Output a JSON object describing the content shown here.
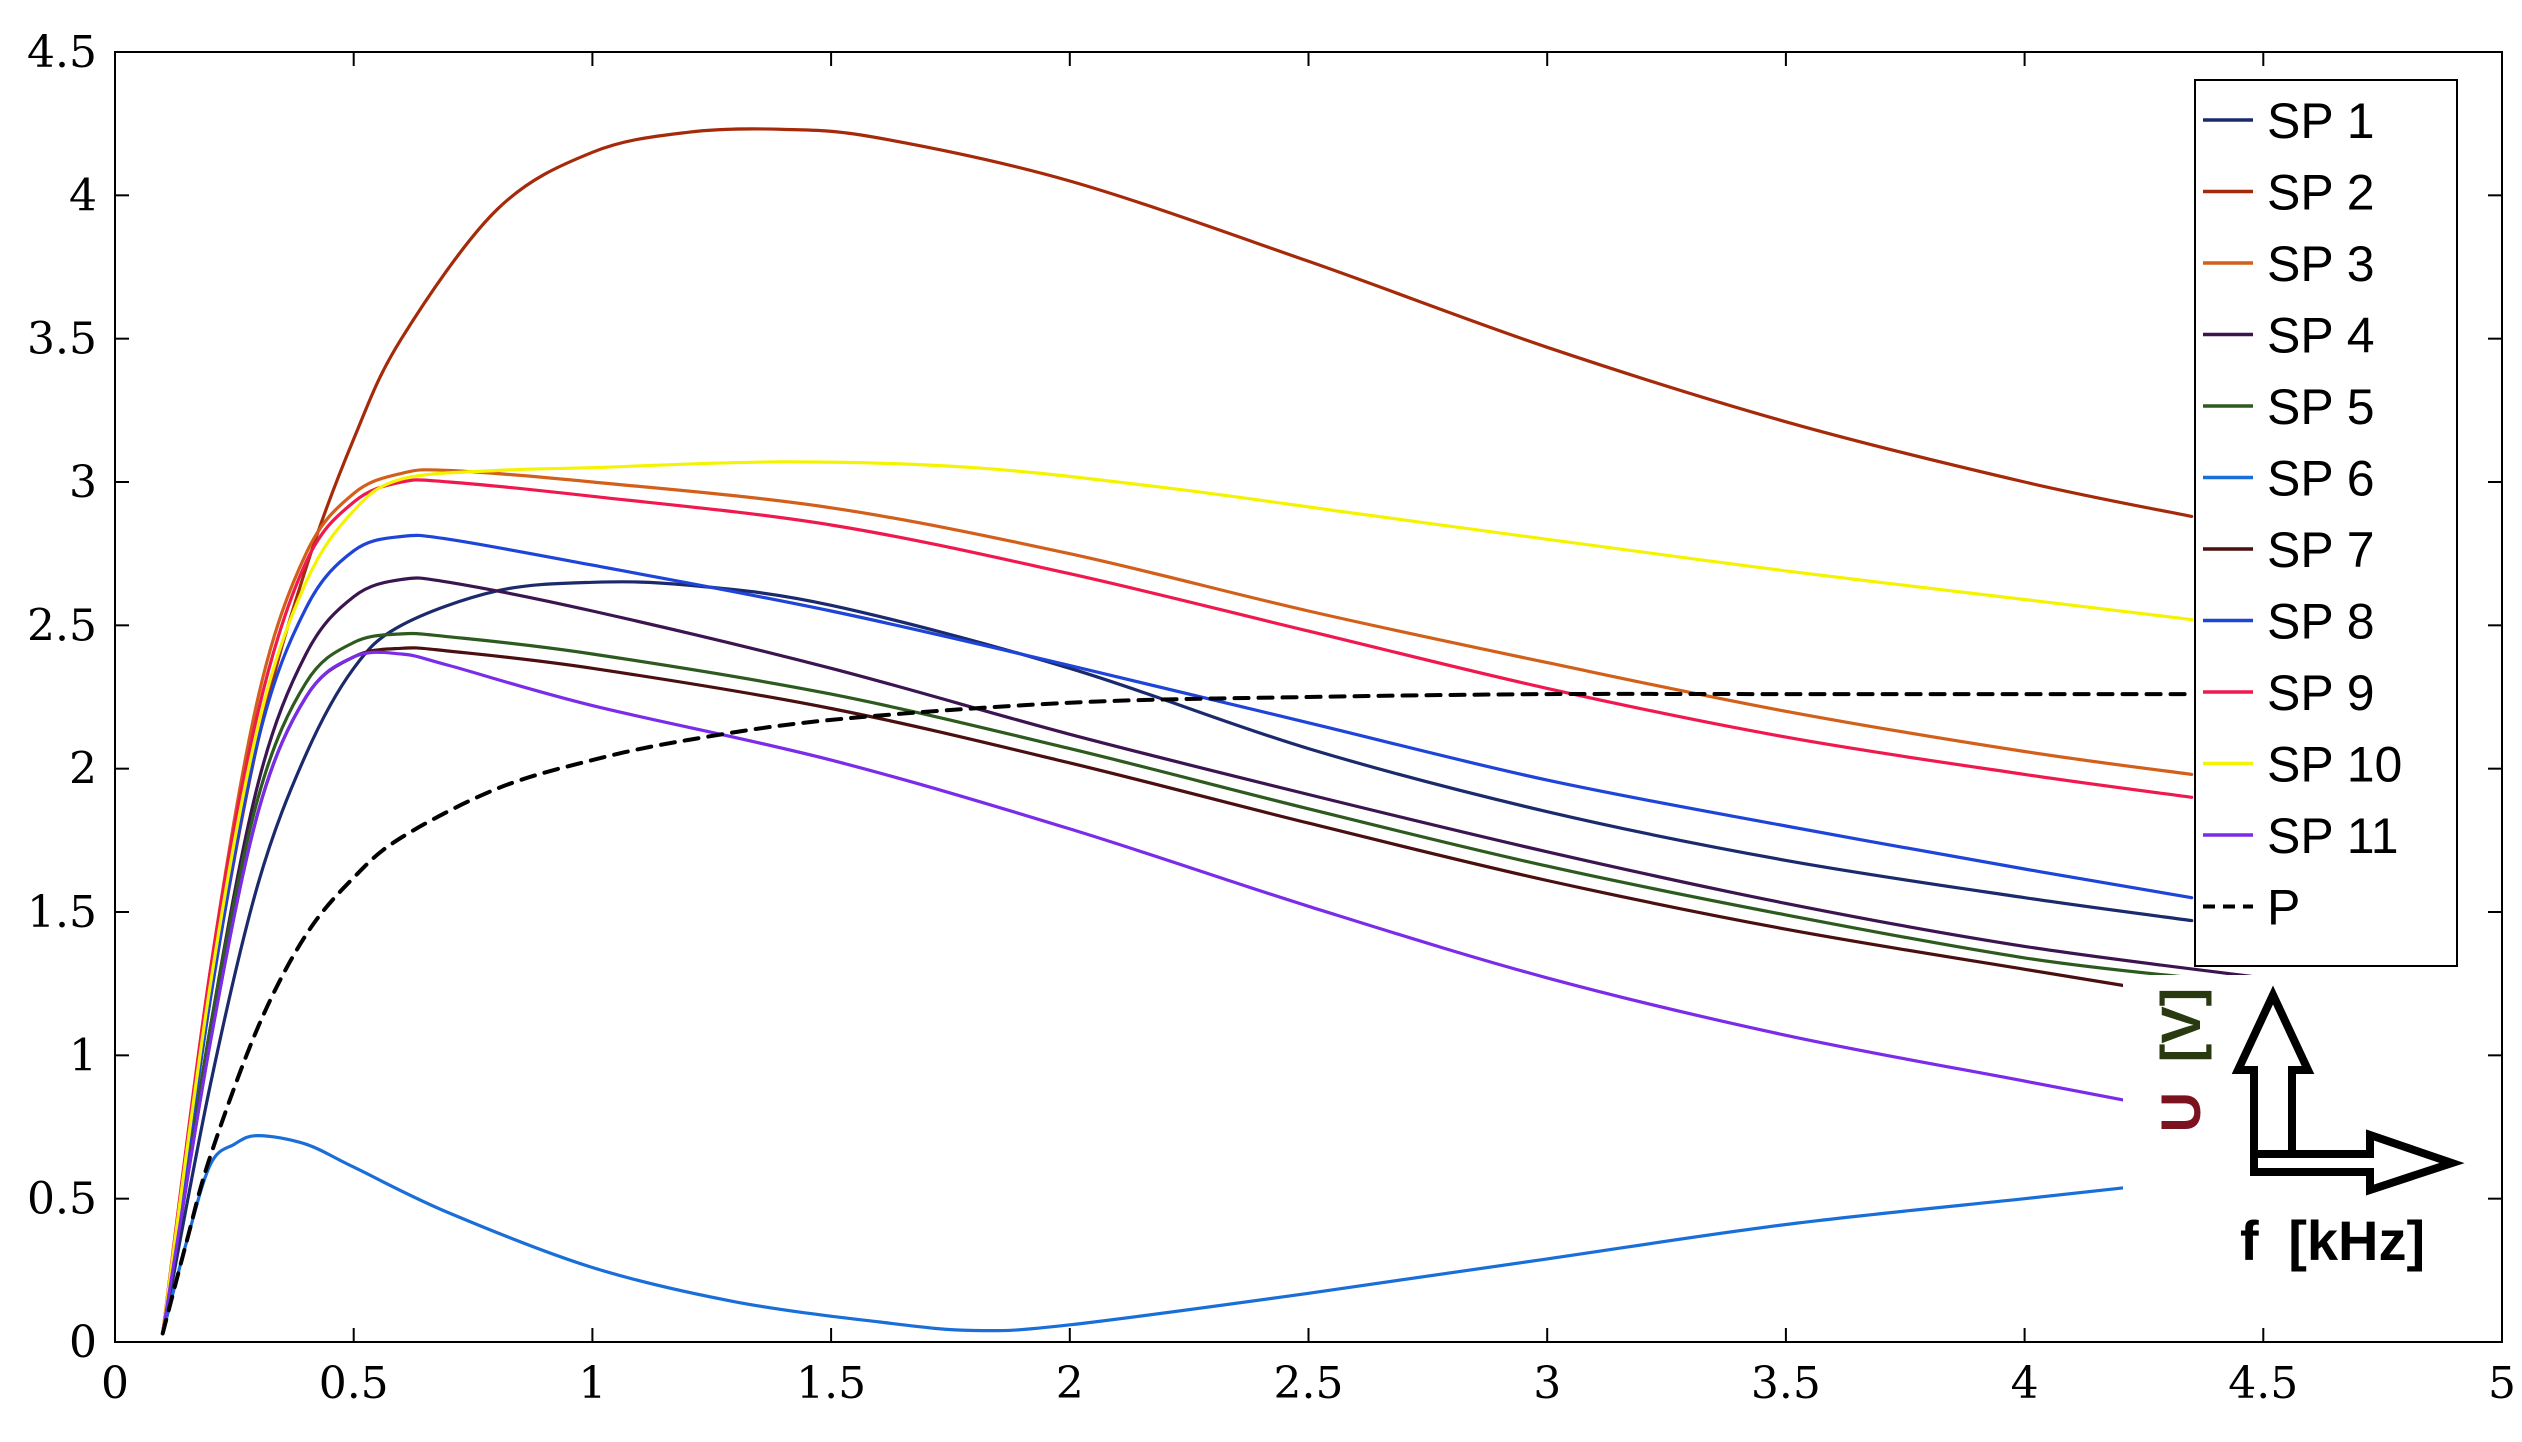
{
  "chart_data": {
    "type": "line",
    "title": "",
    "xlabel": "",
    "ylabel": "",
    "xlim": [
      0,
      5
    ],
    "ylim": [
      0,
      4.5
    ],
    "xticks": [
      "0",
      "0.5",
      "1",
      "1.5",
      "2",
      "2.5",
      "3",
      "3.5",
      "4",
      "4.5",
      "5"
    ],
    "yticks": [
      "0",
      "0.5",
      "1",
      "1.5",
      "2",
      "2.5",
      "3",
      "3.5",
      "4",
      "4.5"
    ],
    "grid": false,
    "legend_position": "top-right",
    "axis_hint": {
      "y_label_U": "U",
      "y_label_unit": "[V]",
      "x_label_f": "f",
      "x_label_unit": "[kHz]"
    },
    "series": [
      {
        "name": "SP 1",
        "color": "#1a2a6c",
        "dash": "solid",
        "x": [
          0.1,
          0.2,
          0.3,
          0.4,
          0.5,
          0.6,
          0.8,
          1.0,
          1.2,
          1.5,
          2.0,
          2.5,
          3.0,
          3.5,
          4.0,
          4.35
        ],
        "y": [
          0.03,
          0.9,
          1.6,
          2.05,
          2.35,
          2.5,
          2.62,
          2.65,
          2.64,
          2.57,
          2.35,
          2.07,
          1.85,
          1.68,
          1.55,
          1.47
        ]
      },
      {
        "name": "SP 2",
        "color": "#a52a0a",
        "dash": "solid",
        "x": [
          0.1,
          0.2,
          0.3,
          0.4,
          0.5,
          0.6,
          0.8,
          1.0,
          1.2,
          1.4,
          1.6,
          2.0,
          2.5,
          3.0,
          3.5,
          4.0,
          4.35
        ],
        "y": [
          0.03,
          1.2,
          2.1,
          2.7,
          3.15,
          3.5,
          3.95,
          4.15,
          4.22,
          4.23,
          4.2,
          4.05,
          3.77,
          3.47,
          3.21,
          3.0,
          2.88
        ]
      },
      {
        "name": "SP 3",
        "color": "#d2601a",
        "dash": "solid",
        "x": [
          0.1,
          0.2,
          0.3,
          0.4,
          0.5,
          0.6,
          0.7,
          1.0,
          1.5,
          2.0,
          2.5,
          3.0,
          3.5,
          4.0,
          4.35
        ],
        "y": [
          0.03,
          1.3,
          2.25,
          2.75,
          2.96,
          3.03,
          3.04,
          3.0,
          2.91,
          2.75,
          2.55,
          2.37,
          2.2,
          2.06,
          1.98
        ]
      },
      {
        "name": "SP 4",
        "color": "#3c1450",
        "dash": "solid",
        "x": [
          0.1,
          0.2,
          0.3,
          0.4,
          0.5,
          0.6,
          0.7,
          1.0,
          1.5,
          2.0,
          2.5,
          3.0,
          3.5,
          4.0,
          4.5
        ],
        "y": [
          0.03,
          1.1,
          1.95,
          2.4,
          2.6,
          2.66,
          2.65,
          2.55,
          2.35,
          2.12,
          1.91,
          1.71,
          1.53,
          1.38,
          1.27
        ]
      },
      {
        "name": "SP 5",
        "color": "#2d5a1e",
        "dash": "solid",
        "x": [
          0.1,
          0.2,
          0.3,
          0.4,
          0.5,
          0.6,
          0.7,
          1.0,
          1.5,
          2.0,
          2.5,
          3.0,
          3.5,
          4.0,
          4.35
        ],
        "y": [
          0.03,
          1.1,
          1.9,
          2.3,
          2.44,
          2.47,
          2.46,
          2.4,
          2.26,
          2.07,
          1.86,
          1.66,
          1.49,
          1.34,
          1.27
        ]
      },
      {
        "name": "SP 6",
        "color": "#1a6ed8",
        "dash": "solid",
        "x": [
          0.1,
          0.15,
          0.2,
          0.25,
          0.3,
          0.4,
          0.5,
          0.7,
          1.0,
          1.3,
          1.6,
          1.8,
          2.0,
          2.5,
          3.0,
          3.5,
          4.0,
          4.22
        ],
        "y": [
          0.03,
          0.35,
          0.62,
          0.69,
          0.72,
          0.69,
          0.61,
          0.45,
          0.26,
          0.14,
          0.07,
          0.04,
          0.06,
          0.17,
          0.29,
          0.41,
          0.5,
          0.54
        ]
      },
      {
        "name": "SP 7",
        "color": "#4a0f0f",
        "dash": "solid",
        "x": [
          0.1,
          0.2,
          0.3,
          0.4,
          0.5,
          0.6,
          0.7,
          1.0,
          1.5,
          2.0,
          2.5,
          3.0,
          3.5,
          4.0,
          4.22
        ],
        "y": [
          0.03,
          1.05,
          1.85,
          2.25,
          2.39,
          2.42,
          2.41,
          2.35,
          2.21,
          2.02,
          1.81,
          1.61,
          1.44,
          1.3,
          1.24
        ]
      },
      {
        "name": "SP 8",
        "color": "#1e44d8",
        "dash": "solid",
        "x": [
          0.1,
          0.2,
          0.3,
          0.4,
          0.5,
          0.6,
          0.7,
          1.0,
          1.5,
          2.0,
          2.5,
          3.0,
          3.5,
          4.0,
          4.35
        ],
        "y": [
          0.03,
          1.2,
          2.1,
          2.56,
          2.76,
          2.81,
          2.8,
          2.71,
          2.55,
          2.36,
          2.16,
          1.96,
          1.8,
          1.65,
          1.55
        ]
      },
      {
        "name": "SP 9",
        "color": "#f0194e",
        "dash": "solid",
        "x": [
          0.1,
          0.2,
          0.3,
          0.4,
          0.5,
          0.6,
          0.7,
          1.0,
          1.5,
          2.0,
          2.5,
          3.0,
          3.5,
          4.0,
          4.35
        ],
        "y": [
          0.03,
          1.3,
          2.2,
          2.72,
          2.93,
          3.0,
          3.0,
          2.95,
          2.85,
          2.68,
          2.48,
          2.28,
          2.11,
          1.98,
          1.9
        ]
      },
      {
        "name": "SP 10",
        "color": "#f4f400",
        "dash": "solid",
        "x": [
          0.1,
          0.2,
          0.3,
          0.4,
          0.5,
          0.6,
          0.8,
          1.0,
          1.4,
          1.8,
          2.2,
          2.6,
          3.0,
          3.5,
          4.0,
          4.35
        ],
        "y": [
          0.03,
          1.25,
          2.15,
          2.65,
          2.9,
          3.01,
          3.04,
          3.05,
          3.07,
          3.05,
          2.98,
          2.89,
          2.8,
          2.69,
          2.59,
          2.52
        ]
      },
      {
        "name": "SP 11",
        "color": "#7a2ce8",
        "dash": "solid",
        "x": [
          0.1,
          0.2,
          0.3,
          0.4,
          0.5,
          0.6,
          0.7,
          1.0,
          1.5,
          2.0,
          2.5,
          3.0,
          3.5,
          4.0,
          4.22
        ],
        "y": [
          0.03,
          1.05,
          1.85,
          2.25,
          2.39,
          2.4,
          2.36,
          2.22,
          2.03,
          1.79,
          1.52,
          1.27,
          1.07,
          0.91,
          0.84
        ]
      },
      {
        "name": "P",
        "color": "#000000",
        "dash": "dashed",
        "x": [
          0.1,
          0.15,
          0.2,
          0.3,
          0.4,
          0.5,
          0.6,
          0.8,
          1.0,
          1.2,
          1.5,
          2.0,
          2.5,
          3.0,
          3.5,
          4.0,
          4.35
        ],
        "y": [
          0.03,
          0.35,
          0.65,
          1.1,
          1.42,
          1.62,
          1.76,
          1.93,
          2.03,
          2.1,
          2.17,
          2.23,
          2.25,
          2.26,
          2.26,
          2.26,
          2.26
        ]
      }
    ]
  }
}
